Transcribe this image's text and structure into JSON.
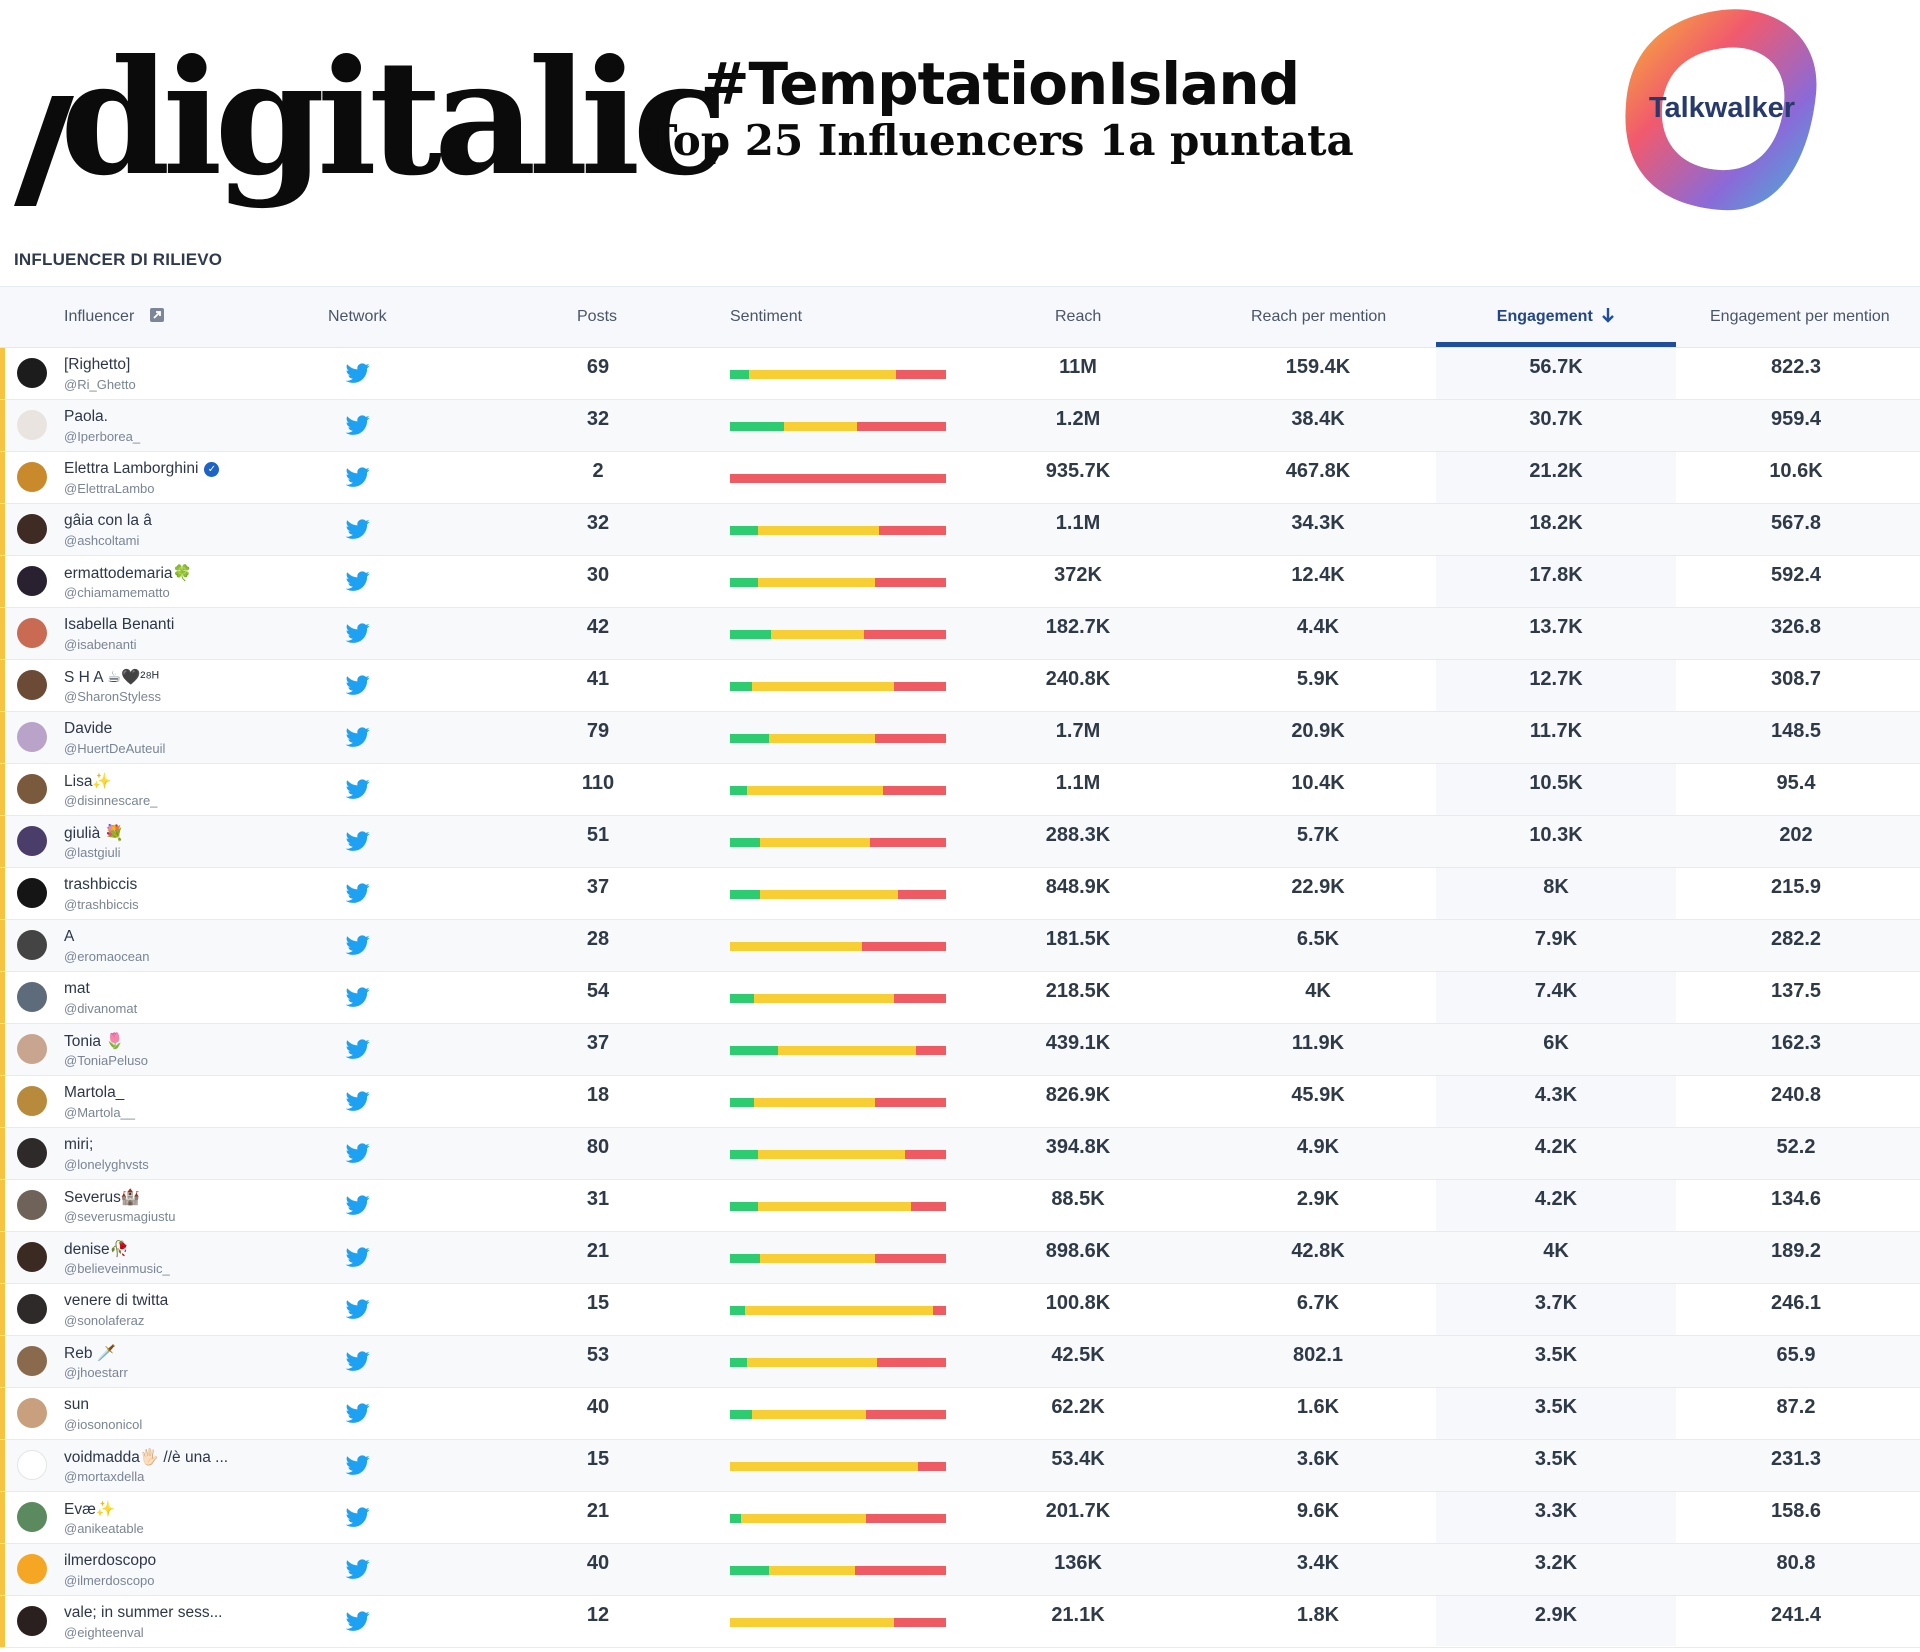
{
  "brand": {
    "name": "digitalic"
  },
  "header": {
    "title_line1": "#TemptationIsland",
    "title_line2": "Top  25 Influencers 1a puntata"
  },
  "partner_logo": {
    "label": "Talkwalker"
  },
  "section_label": "INFLUENCER DI RILIEVO",
  "columns": {
    "influencer": "Influencer",
    "network": "Network",
    "posts": "Posts",
    "sentiment": "Sentiment",
    "reach": "Reach",
    "reach_per_mention": "Reach per mention",
    "engagement": "Engagement",
    "engagement_per_mention": "Engagement per mention"
  },
  "sort": {
    "column": "engagement",
    "direction": "descending",
    "icon": "arrow-down-icon"
  },
  "colors": {
    "positive": "#2ecc71",
    "neutral": "#f7cf35",
    "negative": "#ef5b63",
    "twitter": "#1da1f2",
    "accent": "#1f4e9c"
  },
  "network_icon": "twitter-icon",
  "rows": [
    {
      "name": "[Righetto]",
      "handle": "@Ri_Ghetto",
      "posts": "69",
      "reach": "11M",
      "reach_per_mention": "159.4K",
      "engagement": "56.7K",
      "engagement_per_mention": "822.3",
      "sentiment": [
        0.09,
        0.68,
        0.23
      ],
      "avatar_color": "#1c1c1c"
    },
    {
      "name": "Paola.",
      "handle": "@Iperborea_",
      "posts": "32",
      "reach": "1.2M",
      "reach_per_mention": "38.4K",
      "engagement": "30.7K",
      "engagement_per_mention": "959.4",
      "sentiment": [
        0.25,
        0.34,
        0.41
      ],
      "avatar_color": "#e9e4e0"
    },
    {
      "name": "Elettra Lamborghini",
      "handle": "@ElettraLambo",
      "posts": "2",
      "reach": "935.7K",
      "reach_per_mention": "467.8K",
      "engagement": "21.2K",
      "engagement_per_mention": "10.6K",
      "sentiment": [
        0,
        0,
        1
      ],
      "avatar_color": "#c98a2b",
      "verified": true
    },
    {
      "name": "gâia con la â",
      "handle": "@ashcoltami",
      "posts": "32",
      "reach": "1.1M",
      "reach_per_mention": "34.3K",
      "engagement": "18.2K",
      "engagement_per_mention": "567.8",
      "sentiment": [
        0.13,
        0.56,
        0.31
      ],
      "avatar_color": "#3d2b24"
    },
    {
      "name": "ermattodemaria🍀",
      "handle": "@chiamamematto",
      "posts": "30",
      "reach": "372K",
      "reach_per_mention": "12.4K",
      "engagement": "17.8K",
      "engagement_per_mention": "592.4",
      "sentiment": [
        0.13,
        0.54,
        0.33
      ],
      "avatar_color": "#2a2130"
    },
    {
      "name": "Isabella Benanti",
      "handle": "@isabenanti",
      "posts": "42",
      "reach": "182.7K",
      "reach_per_mention": "4.4K",
      "engagement": "13.7K",
      "engagement_per_mention": "326.8",
      "sentiment": [
        0.19,
        0.43,
        0.38
      ],
      "avatar_color": "#c96a52"
    },
    {
      "name": "S H A ☕🖤²⁸ᴴ",
      "handle": "@SharonStyless",
      "posts": "41",
      "reach": "240.8K",
      "reach_per_mention": "5.9K",
      "engagement": "12.7K",
      "engagement_per_mention": "308.7",
      "sentiment": [
        0.1,
        0.66,
        0.24
      ],
      "avatar_color": "#6b4a36"
    },
    {
      "name": "Davide",
      "handle": "@HuertDeAuteuil",
      "posts": "79",
      "reach": "1.7M",
      "reach_per_mention": "20.9K",
      "engagement": "11.7K",
      "engagement_per_mention": "148.5",
      "sentiment": [
        0.18,
        0.49,
        0.33
      ],
      "avatar_color": "#b9a3c8"
    },
    {
      "name": "Lisa✨",
      "handle": "@disinnescare_",
      "posts": "110",
      "reach": "1.1M",
      "reach_per_mention": "10.4K",
      "engagement": "10.5K",
      "engagement_per_mention": "95.4",
      "sentiment": [
        0.08,
        0.63,
        0.29
      ],
      "avatar_color": "#7a5a3d"
    },
    {
      "name": "giulià 💐",
      "handle": "@lastgiuli",
      "posts": "51",
      "reach": "288.3K",
      "reach_per_mention": "5.7K",
      "engagement": "10.3K",
      "engagement_per_mention": "202",
      "sentiment": [
        0.14,
        0.51,
        0.35
      ],
      "avatar_color": "#4a3d6a"
    },
    {
      "name": "trashbiccis",
      "handle": "@trashbiccis",
      "posts": "37",
      "reach": "848.9K",
      "reach_per_mention": "22.9K",
      "engagement": "8K",
      "engagement_per_mention": "215.9",
      "sentiment": [
        0.14,
        0.64,
        0.22
      ],
      "avatar_color": "#151515"
    },
    {
      "name": "A",
      "handle": "@eromaocean",
      "posts": "28",
      "reach": "181.5K",
      "reach_per_mention": "6.5K",
      "engagement": "7.9K",
      "engagement_per_mention": "282.2",
      "sentiment": [
        0,
        0.61,
        0.39
      ],
      "avatar_color": "#444444"
    },
    {
      "name": "mat",
      "handle": "@divanomat",
      "posts": "54",
      "reach": "218.5K",
      "reach_per_mention": "4K",
      "engagement": "7.4K",
      "engagement_per_mention": "137.5",
      "sentiment": [
        0.11,
        0.65,
        0.24
      ],
      "avatar_color": "#5d6b7a"
    },
    {
      "name": "Tonia 🌷",
      "handle": "@ToniaPeluso",
      "posts": "37",
      "reach": "439.1K",
      "reach_per_mention": "11.9K",
      "engagement": "6K",
      "engagement_per_mention": "162.3",
      "sentiment": [
        0.22,
        0.64,
        0.14
      ],
      "avatar_color": "#c8a58f"
    },
    {
      "name": "Martola_",
      "handle": "@Martola__",
      "posts": "18",
      "reach": "826.9K",
      "reach_per_mention": "45.9K",
      "engagement": "4.3K",
      "engagement_per_mention": "240.8",
      "sentiment": [
        0.11,
        0.56,
        0.33
      ],
      "avatar_color": "#b88a3c"
    },
    {
      "name": "miri;",
      "handle": "@lonelyghvsts",
      "posts": "80",
      "reach": "394.8K",
      "reach_per_mention": "4.9K",
      "engagement": "4.2K",
      "engagement_per_mention": "52.2",
      "sentiment": [
        0.13,
        0.68,
        0.19
      ],
      "avatar_color": "#2f2a2a"
    },
    {
      "name": "Severus🏰",
      "handle": "@severusmagiustu",
      "posts": "31",
      "reach": "88.5K",
      "reach_per_mention": "2.9K",
      "engagement": "4.2K",
      "engagement_per_mention": "134.6",
      "sentiment": [
        0.13,
        0.71,
        0.16
      ],
      "avatar_color": "#6f6258"
    },
    {
      "name": "denise🥀",
      "handle": "@believeinmusic_",
      "posts": "21",
      "reach": "898.6K",
      "reach_per_mention": "42.8K",
      "engagement": "4K",
      "engagement_per_mention": "189.2",
      "sentiment": [
        0.14,
        0.53,
        0.33
      ],
      "avatar_color": "#3b2a22"
    },
    {
      "name": "venere di twitta",
      "handle": "@sonolaferaz",
      "posts": "15",
      "reach": "100.8K",
      "reach_per_mention": "6.7K",
      "engagement": "3.7K",
      "engagement_per_mention": "246.1",
      "sentiment": [
        0.07,
        0.87,
        0.06
      ],
      "avatar_color": "#2e2a2a"
    },
    {
      "name": "Reb 🗡️",
      "handle": "@jhoestarr",
      "posts": "53",
      "reach": "42.5K",
      "reach_per_mention": "802.1",
      "engagement": "3.5K",
      "engagement_per_mention": "65.9",
      "sentiment": [
        0.08,
        0.6,
        0.32
      ],
      "avatar_color": "#8a6a4d"
    },
    {
      "name": "sun",
      "handle": "@iosononicol",
      "posts": "40",
      "reach": "62.2K",
      "reach_per_mention": "1.6K",
      "engagement": "3.5K",
      "engagement_per_mention": "87.2",
      "sentiment": [
        0.1,
        0.53,
        0.37
      ],
      "avatar_color": "#c8a07d"
    },
    {
      "name": "voidmadda🖐🏻 //è una ...",
      "handle": "@mortaxdella",
      "posts": "15",
      "reach": "53.4K",
      "reach_per_mention": "3.6K",
      "engagement": "3.5K",
      "engagement_per_mention": "231.3",
      "sentiment": [
        0,
        0.87,
        0.13
      ],
      "avatar_color": "#ffffff"
    },
    {
      "name": "Evæ✨",
      "handle": "@anikeatable",
      "posts": "21",
      "reach": "201.7K",
      "reach_per_mention": "9.6K",
      "engagement": "3.3K",
      "engagement_per_mention": "158.6",
      "sentiment": [
        0.05,
        0.58,
        0.37
      ],
      "avatar_color": "#5a8a5d"
    },
    {
      "name": "ilmerdoscopo",
      "handle": "@ilmerdoscopo",
      "posts": "40",
      "reach": "136K",
      "reach_per_mention": "3.4K",
      "engagement": "3.2K",
      "engagement_per_mention": "80.8",
      "sentiment": [
        0.18,
        0.4,
        0.42
      ],
      "avatar_color": "#f5a623"
    },
    {
      "name": "vale; in summer sess...",
      "handle": "@eighteenval",
      "posts": "12",
      "reach": "21.1K",
      "reach_per_mention": "1.8K",
      "engagement": "2.9K",
      "engagement_per_mention": "241.4",
      "sentiment": [
        0,
        0.76,
        0.24
      ],
      "avatar_color": "#2b2020"
    }
  ]
}
